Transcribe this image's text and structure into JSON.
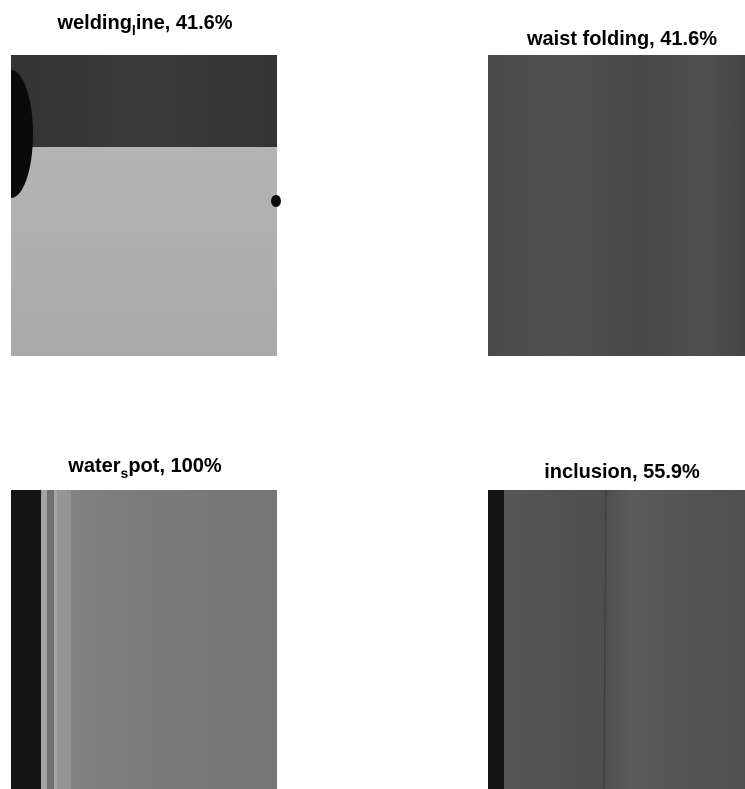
{
  "panels": [
    {
      "title": {
        "before": "welding",
        "subscript": "l",
        "after": "ine, 41.6%"
      }
    },
    {
      "title": {
        "text": "waist folding, 41.6%"
      }
    },
    {
      "title": {
        "before": "water",
        "subscript": "s",
        "after": "pot, 100%"
      }
    },
    {
      "title": {
        "text": "inclusion, 55.9%"
      }
    }
  ]
}
